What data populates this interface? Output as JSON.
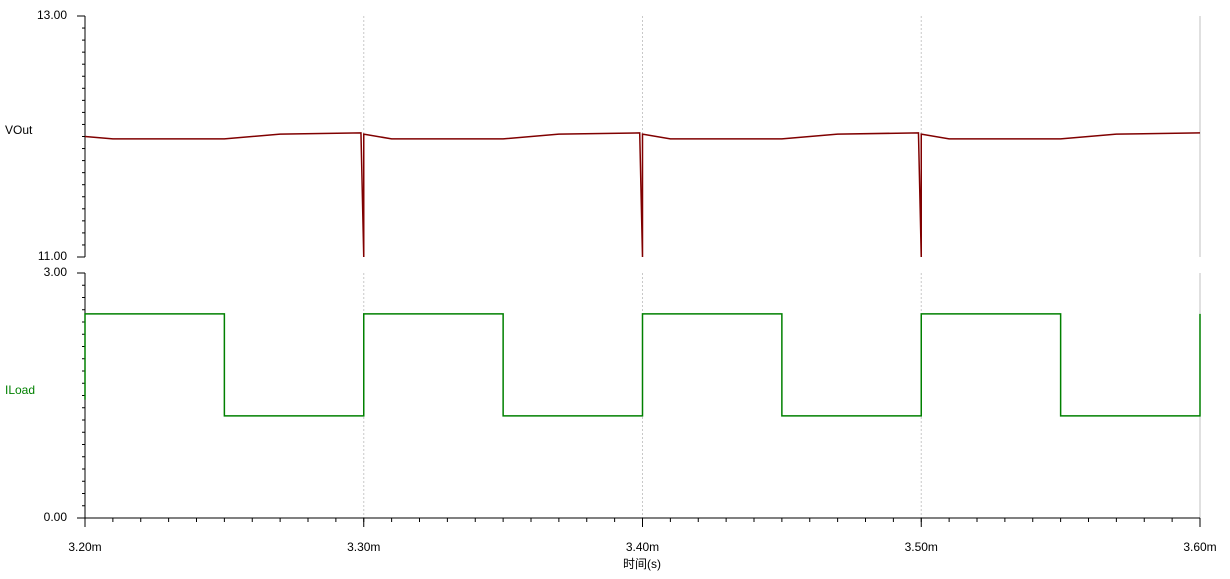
{
  "chart_data": [
    {
      "type": "line",
      "x": [
        0.0032,
        0.00321,
        0.00325,
        0.00327,
        0.003299,
        0.0033,
        0.0033,
        0.00331,
        0.00335,
        0.00337,
        0.003399,
        0.0034,
        0.0034,
        0.00341,
        0.00345,
        0.00347,
        0.003499,
        0.0035,
        0.0035,
        0.00351,
        0.00355,
        0.00357,
        0.0036
      ],
      "series": [
        {
          "name": "VOut",
          "color": "#800000",
          "values": [
            12.0,
            11.98,
            11.98,
            12.02,
            12.03,
            11.0,
            12.02,
            11.98,
            11.98,
            12.02,
            12.03,
            11.0,
            12.02,
            11.98,
            11.98,
            12.02,
            12.03,
            11.0,
            12.02,
            11.98,
            11.98,
            12.02,
            12.03
          ]
        }
      ],
      "xlim": [
        0.0032,
        0.0036
      ],
      "ylim": [
        11,
        13
      ],
      "yticks": [
        {
          "value": 11,
          "label": "11.00"
        },
        {
          "value": 13,
          "label": "13.00"
        }
      ],
      "grid": true
    },
    {
      "type": "line",
      "x": [
        0.0032,
        0.0032,
        0.00325,
        0.00325,
        0.0033,
        0.0033,
        0.00335,
        0.00335,
        0.0034,
        0.0034,
        0.00345,
        0.00345,
        0.0035,
        0.0035,
        0.00355,
        0.00355,
        0.0036,
        0.0036
      ],
      "series": [
        {
          "name": "ILoad",
          "color": "#008000",
          "values": [
            1.45,
            2.5,
            2.5,
            1.25,
            1.25,
            2.5,
            2.5,
            1.25,
            1.25,
            2.5,
            2.5,
            1.25,
            1.25,
            2.5,
            2.5,
            1.25,
            1.25,
            2.5
          ]
        }
      ],
      "xlim": [
        0.0032,
        0.0036
      ],
      "xticks": [
        {
          "value": 0.0032,
          "label": "3.20m"
        },
        {
          "value": 0.0033,
          "label": "3.30m"
        },
        {
          "value": 0.0034,
          "label": "3.40m"
        },
        {
          "value": 0.0035,
          "label": "3.50m"
        },
        {
          "value": 0.0036,
          "label": "3.60m"
        }
      ],
      "xlabel": "时间(s)",
      "ylim": [
        0,
        3
      ],
      "yticks": [
        {
          "value": 0,
          "label": "0.00"
        },
        {
          "value": 3,
          "label": "3.00"
        }
      ],
      "grid": true
    }
  ]
}
